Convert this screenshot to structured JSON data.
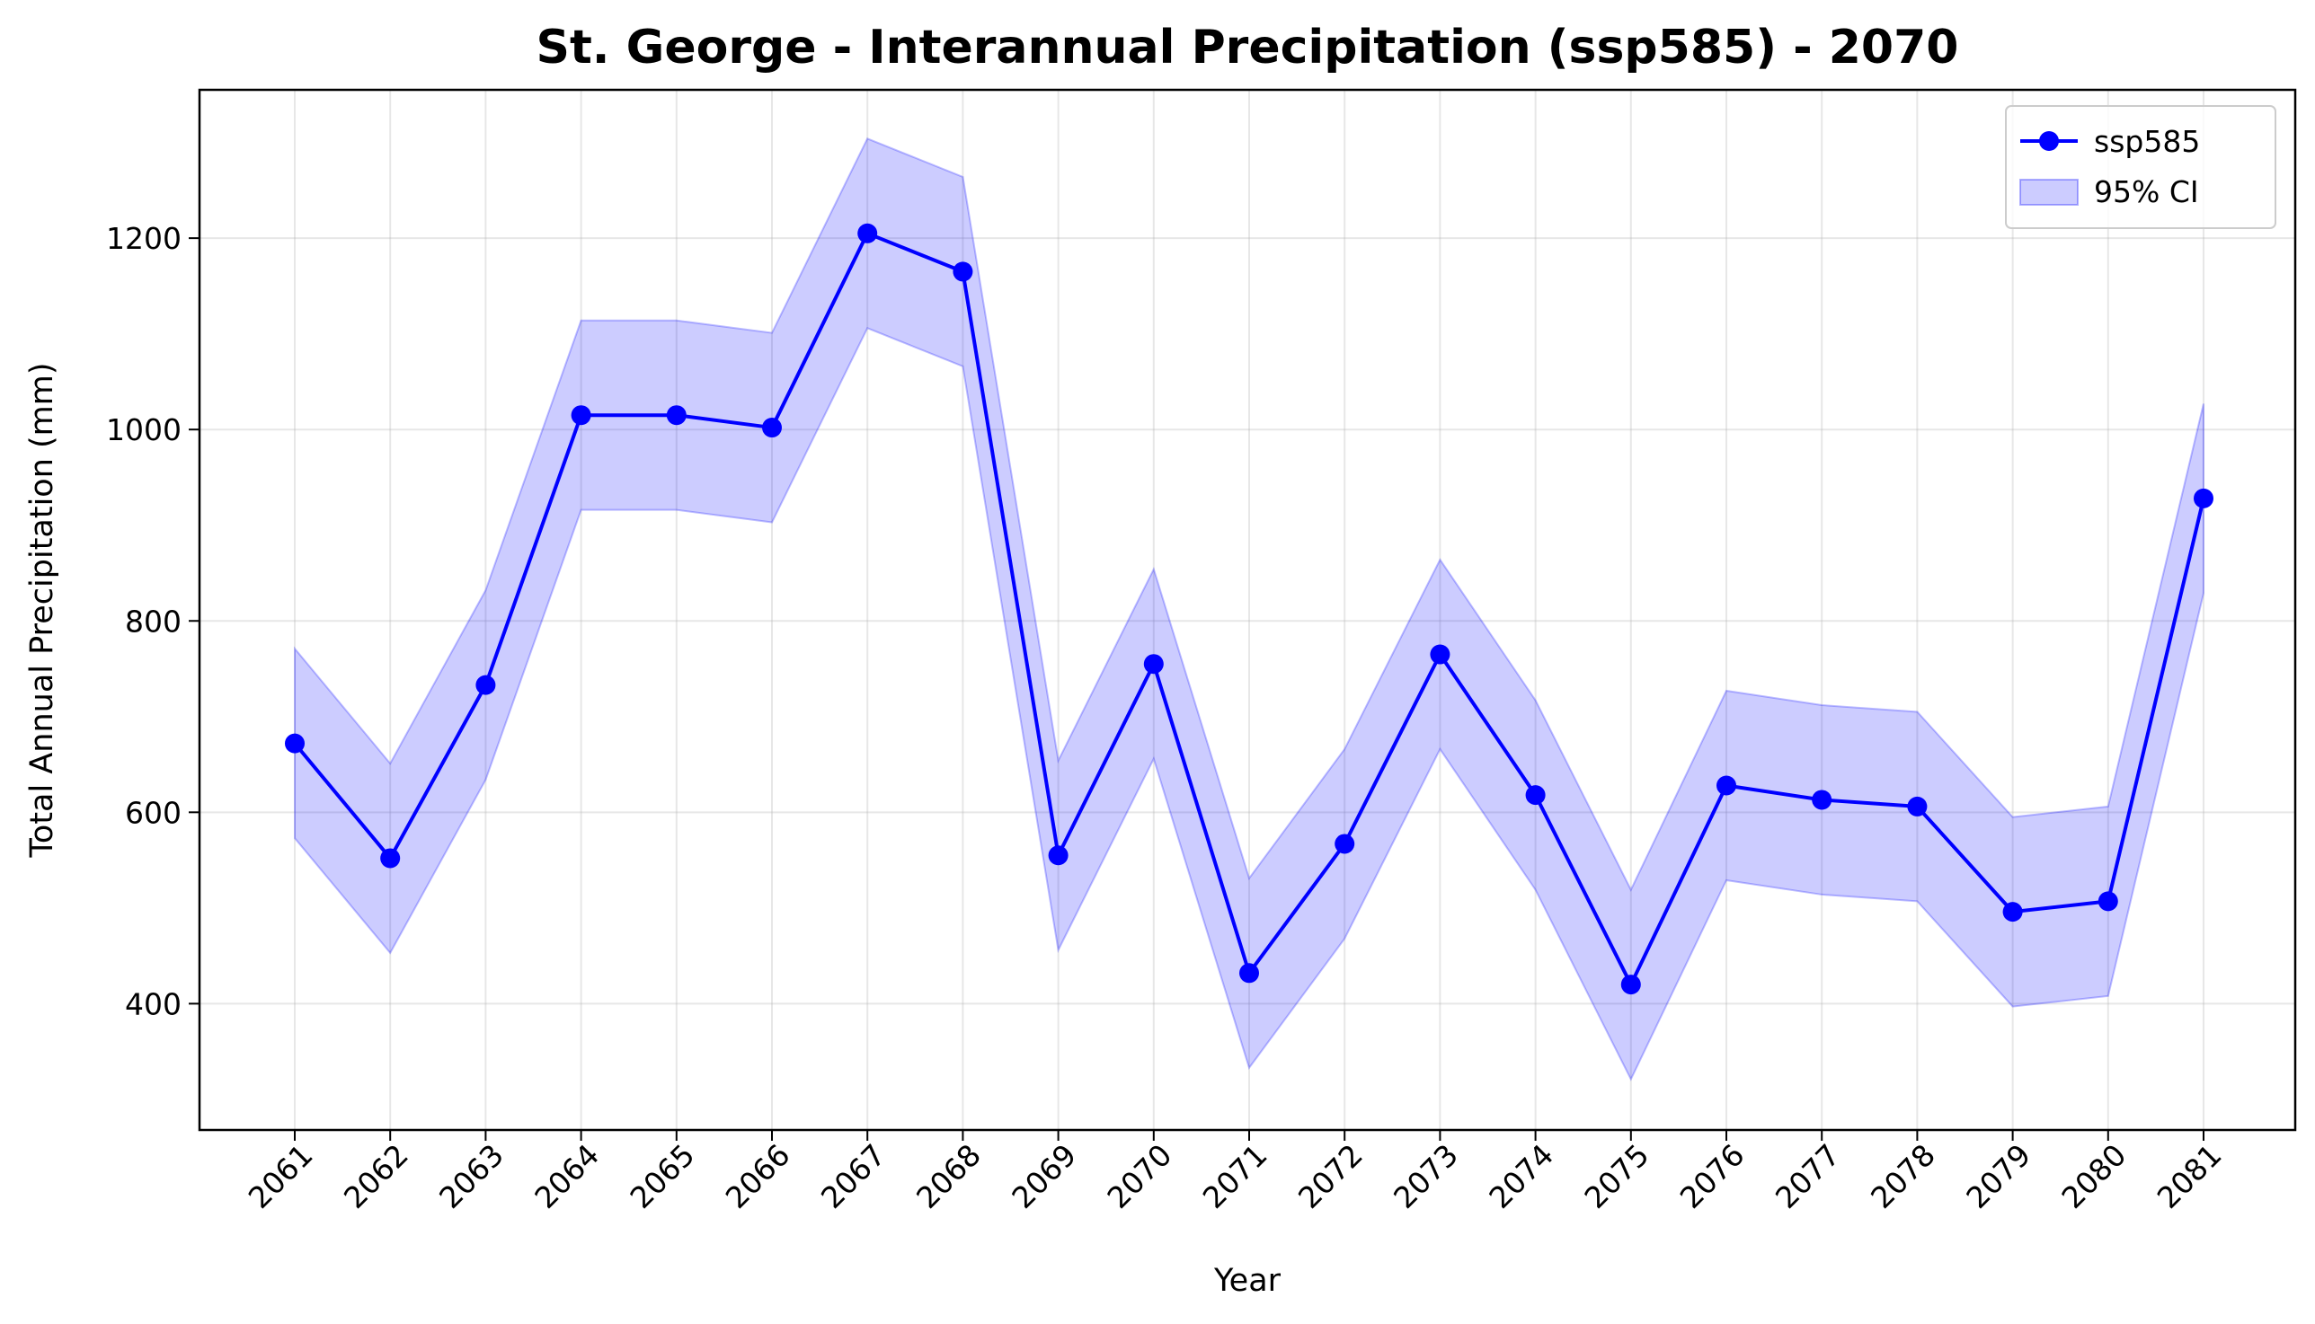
{
  "chart_data": {
    "type": "line",
    "title": "St. George - Interannual Precipitation (ssp585) - 2070",
    "xlabel": "Year",
    "ylabel": "Total Annual Precipitation (mm)",
    "x": [
      "2061",
      "2062",
      "2063",
      "2064",
      "2065",
      "2066",
      "2067",
      "2068",
      "2069",
      "2070",
      "2071",
      "2072",
      "2073",
      "2074",
      "2075",
      "2076",
      "2077",
      "2078",
      "2079",
      "2080",
      "2081"
    ],
    "series": [
      {
        "name": "ssp585",
        "color": "#0000ff",
        "values": [
          672,
          552,
          733,
          1015,
          1015,
          1002,
          1205,
          1165,
          555,
          755,
          432,
          567,
          765,
          618,
          420,
          628,
          613,
          606,
          496,
          507,
          928
        ]
      }
    ],
    "ci": {
      "name": "95% CI",
      "color": "#0000ff",
      "opacity": 0.2,
      "lower": [
        573,
        453,
        634,
        916,
        916,
        903,
        1106,
        1066,
        456,
        656,
        333,
        468,
        666,
        519,
        321,
        529,
        514,
        507,
        397,
        408,
        829
      ],
      "upper": [
        771,
        651,
        832,
        1114,
        1114,
        1101,
        1304,
        1264,
        654,
        854,
        531,
        666,
        864,
        717,
        519,
        727,
        712,
        705,
        595,
        606,
        1027
      ]
    },
    "yticks": [
      400,
      600,
      800,
      1000,
      1200
    ],
    "ylim": [
      268,
      1355
    ],
    "grid": true,
    "legend_position": "top-right"
  }
}
